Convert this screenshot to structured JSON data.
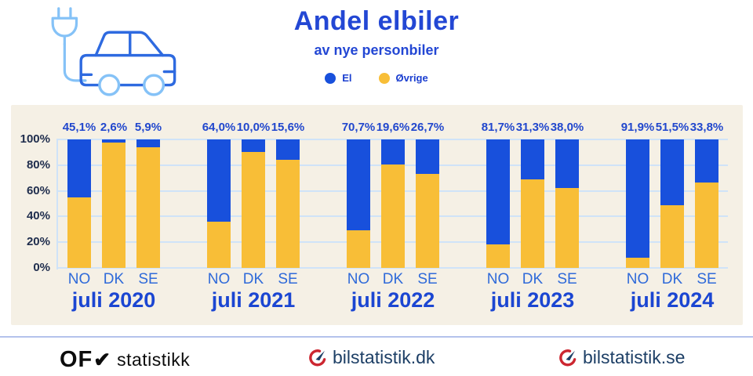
{
  "header": {
    "title": "Andel elbiler",
    "subtitle": "av nye personbiler",
    "legend": [
      {
        "label": "El",
        "color": "#1850dc"
      },
      {
        "label": "Øvrige",
        "color": "#f8be37"
      }
    ]
  },
  "chart_data": {
    "type": "bar",
    "stacked": true,
    "title": "Andel elbiler",
    "subtitle": "av nye personbiler",
    "ylabel": "",
    "xlabel": "",
    "ylim": [
      0,
      100
    ],
    "y_ticks": [
      "100%",
      "80%",
      "60%",
      "40%",
      "20%",
      "0%"
    ],
    "grid": true,
    "legend_position": "top-center",
    "categories": [
      "juli 2020",
      "juli 2021",
      "juli 2022",
      "juli 2023",
      "juli 2024"
    ],
    "countries": [
      "NO",
      "DK",
      "SE"
    ],
    "series": [
      {
        "name": "El",
        "color": "#1850dc",
        "values": [
          [
            45.1,
            2.6,
            5.9
          ],
          [
            64.0,
            10.0,
            15.6
          ],
          [
            70.7,
            19.6,
            26.7
          ],
          [
            81.7,
            31.3,
            38.0
          ],
          [
            91.9,
            51.5,
            33.8
          ]
        ]
      },
      {
        "name": "Øvrige",
        "color": "#f8be37",
        "values": [
          [
            54.9,
            97.4,
            94.1
          ],
          [
            36.0,
            90.0,
            84.4
          ],
          [
            29.3,
            80.4,
            73.3
          ],
          [
            18.3,
            68.7,
            62.0
          ],
          [
            8.1,
            48.5,
            66.2
          ]
        ]
      }
    ],
    "value_labels": [
      [
        "45,1%",
        "2,6%",
        "5,9%"
      ],
      [
        "64,0%",
        "10,0%",
        "15,6%"
      ],
      [
        "70,7%",
        "19,6%",
        "26,7%"
      ],
      [
        "81,7%",
        "31,3%",
        "38,0%"
      ],
      [
        "91,9%",
        "51,5%",
        "33,8%"
      ]
    ],
    "colors": {
      "panel_background": "#f5f0e5",
      "gridline": "#cfe3f8",
      "y_tick_text": "#1f2d4d",
      "value_label_text": "#2147cd",
      "country_label_text": "#2f6ad9",
      "group_label_text": "#1b46d2",
      "title_text": "#2347d4"
    }
  },
  "footer": {
    "ofv": {
      "text": "OF",
      "check": "✔",
      "suffix": "statistikk"
    },
    "dk": "bilstatistik.dk",
    "se": "bilstatistik.se"
  }
}
